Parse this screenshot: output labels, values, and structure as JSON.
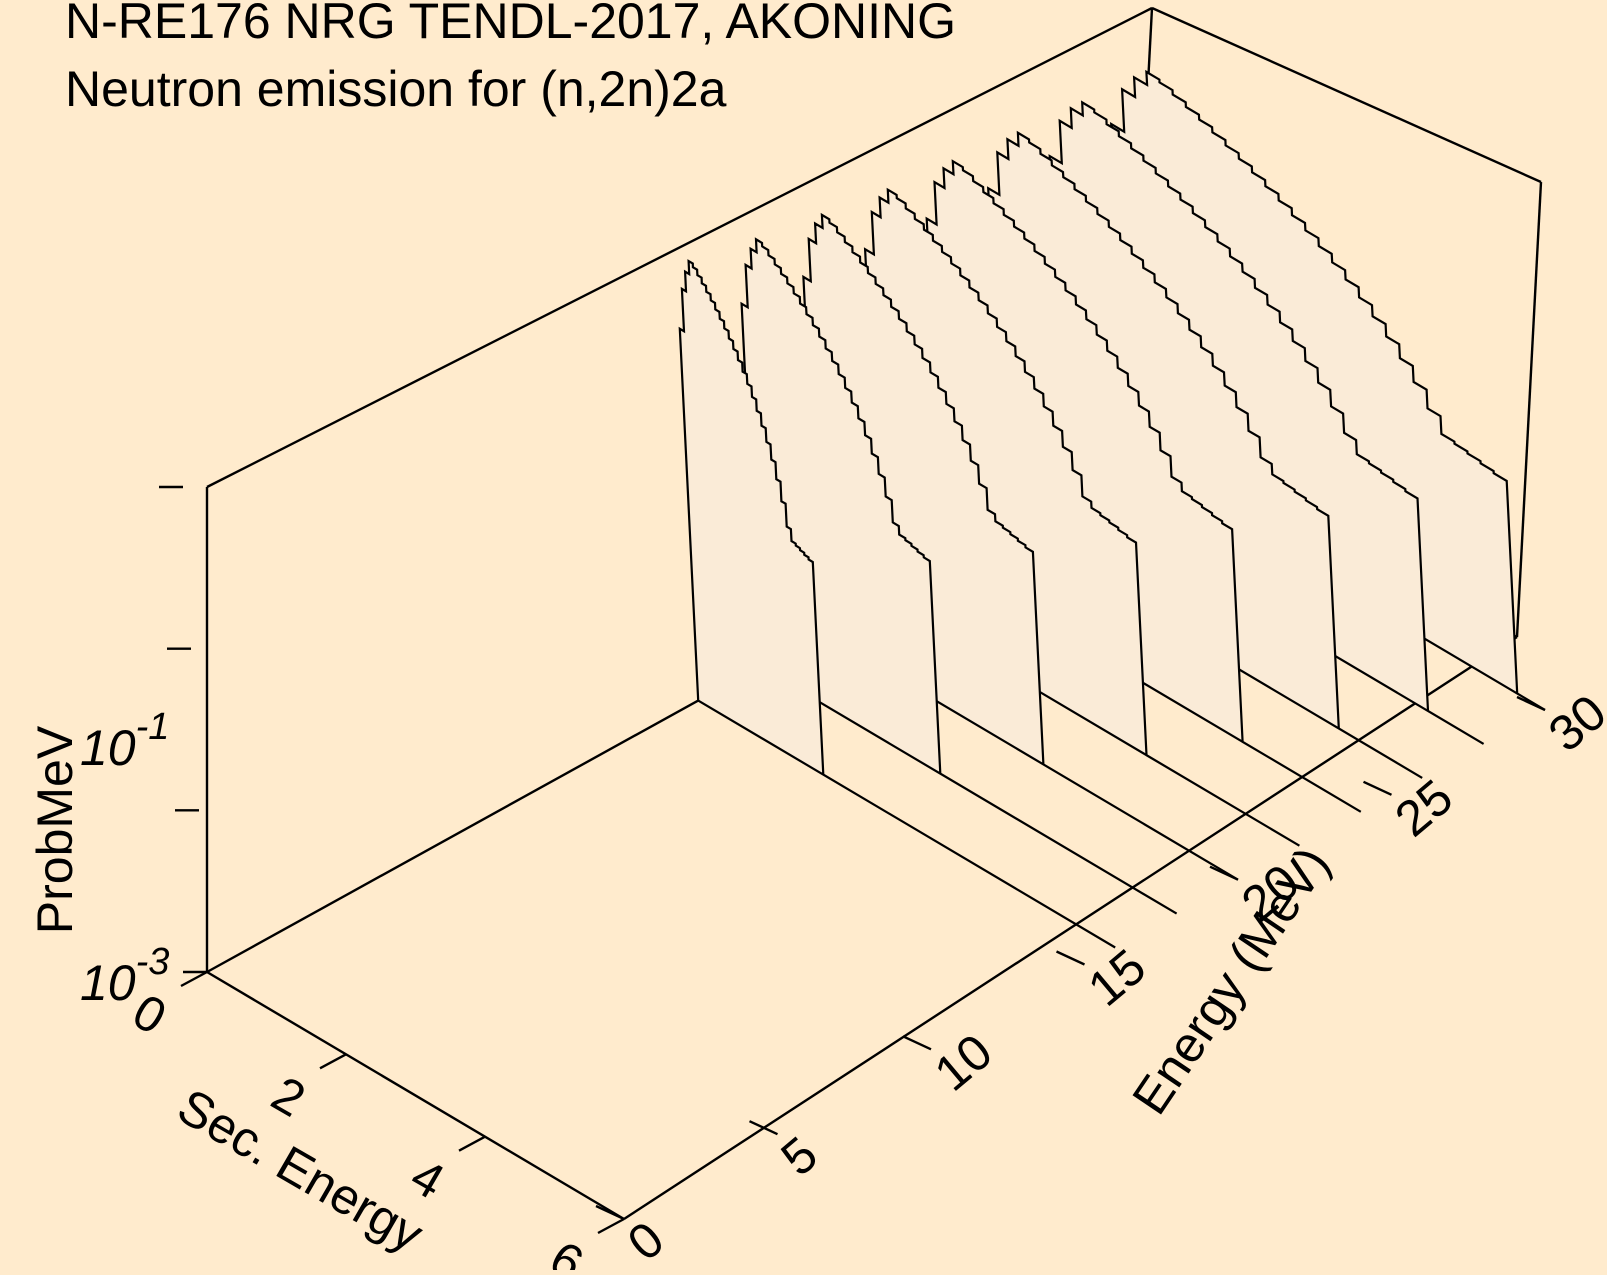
{
  "chart_data": {
    "type": "3d-waterfall-histogram",
    "title": "N-RE176 NRG TENDL-2017, AKONING",
    "subtitle": "Neutron emission for (n,2n)2a",
    "x_axis": {
      "label": "Energy (MeV)",
      "range": [
        0,
        30
      ],
      "ticks": [
        "0",
        "5",
        "10",
        "15",
        "20",
        "25",
        "30"
      ]
    },
    "y_axis": {
      "label": "Sec. Energy",
      "range": [
        0,
        6
      ],
      "ticks": [
        "0",
        "2",
        "4",
        "6"
      ]
    },
    "z_axis": {
      "label": "ProbMeV",
      "scale": "log",
      "range": [
        0.001,
        1
      ],
      "ticks": [
        {
          "base": "10",
          "exp": "-3"
        },
        {
          "base": "10",
          "exp": "-1"
        }
      ]
    },
    "fill_color": "#FAEBD7",
    "background_color": "#FFEBCD",
    "series": [
      {
        "incident_energy": 16.0,
        "peak": 0.59,
        "sec_max": 1.8
      },
      {
        "incident_energy": 18.0,
        "peak": 0.52,
        "sec_max": 2.6
      },
      {
        "incident_energy": 20.0,
        "peak": 0.47,
        "sec_max": 3.2
      },
      {
        "incident_energy": 22.0,
        "peak": 0.43,
        "sec_max": 3.8
      },
      {
        "incident_energy": 24.0,
        "peak": 0.41,
        "sec_max": 4.3
      },
      {
        "incident_energy": 26.0,
        "peak": 0.39,
        "sec_max": 4.8
      },
      {
        "incident_energy": 28.0,
        "peak": 0.38,
        "sec_max": 5.2
      },
      {
        "incident_energy": 30.0,
        "peak": 0.37,
        "sec_max": 5.6
      }
    ]
  }
}
